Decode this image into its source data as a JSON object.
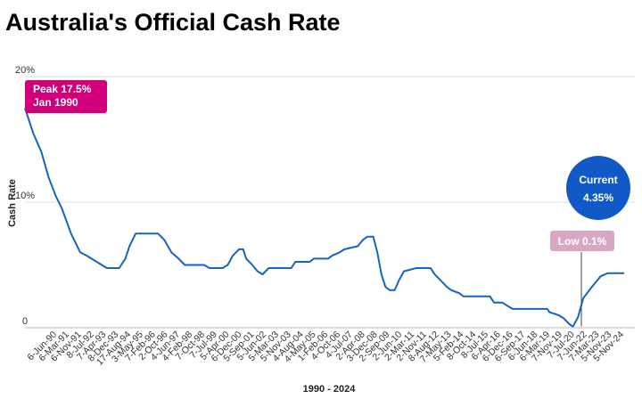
{
  "chart_data": {
    "type": "line",
    "title": "Australia's Official Cash Rate",
    "xlabel": "1990 - 2024",
    "ylabel": "Cash Rate",
    "ylim": [
      0,
      20
    ],
    "yticks": [
      {
        "value": 0,
        "label": "0"
      },
      {
        "value": 10,
        "label": "10%"
      },
      {
        "value": 20,
        "label": "20%"
      }
    ],
    "grid": true,
    "legend": "none",
    "line_color": "#1565c0",
    "xtick_labels": [
      "6-Jun-90",
      "6-Mar-91",
      "6-Nov-91",
      "8-Jul-92",
      "7-Apr-93",
      "8-Dec-93",
      "17-Aug-94",
      "3-May-95",
      "7-Feb-96",
      "2-Oct-96",
      "4-Jun-97",
      "4-Feb-98",
      "7-Oct-98",
      "7-Jul-99",
      "5-Apr-00",
      "6-Dec-00",
      "5-Sep-01",
      "5-Jun-02",
      "5-Mar-03",
      "5-Nov-03",
      "4-Aug-04",
      "4-May-05",
      "1-Feb-06",
      "4-Oct-06",
      "4-Jul-07",
      "2-Apr-08",
      "3-Dec-08",
      "2-Sep-09",
      "2-Jun-10",
      "2-Mar-11",
      "2-Nov-11",
      "8-Aug-12",
      "7-May-13",
      "5-Feb-14",
      "8-Oct-14",
      "8-Jul-15",
      "6-Apr-16",
      "6-Dec-16",
      "6-Sep-17",
      "6-Jun-18",
      "6-Mar-19",
      "7-Nov-19",
      "7-Jul-20",
      "7-Jun-22",
      "7-Mar-23",
      "5-Nov-23",
      "5-Nov-24"
    ],
    "series": [
      {
        "points": [
          [
            0,
            17.5
          ],
          [
            0.8,
            15.5
          ],
          [
            1.6,
            14
          ],
          [
            2.3,
            12
          ],
          [
            3,
            10.5
          ],
          [
            3.6,
            9.5
          ],
          [
            4.5,
            7.5
          ],
          [
            5.4,
            6
          ],
          [
            6,
            5.75
          ],
          [
            7,
            5.25
          ],
          [
            8,
            4.75
          ],
          [
            9.2,
            4.75
          ],
          [
            9.8,
            5.5
          ],
          [
            10.2,
            6.5
          ],
          [
            10.8,
            7.5
          ],
          [
            13,
            7.5
          ],
          [
            13.6,
            7
          ],
          [
            14.3,
            6
          ],
          [
            15,
            5.5
          ],
          [
            15.6,
            5
          ],
          [
            17.5,
            5
          ],
          [
            18,
            4.75
          ],
          [
            19.3,
            4.75
          ],
          [
            19.8,
            5
          ],
          [
            20.3,
            5.75
          ],
          [
            20.9,
            6.25
          ],
          [
            21.3,
            6.25
          ],
          [
            21.6,
            5.5
          ],
          [
            22.2,
            5
          ],
          [
            22.7,
            4.5
          ],
          [
            23.2,
            4.25
          ],
          [
            23.8,
            4.75
          ],
          [
            24.7,
            4.75
          ],
          [
            26,
            4.75
          ],
          [
            26.4,
            5.25
          ],
          [
            27.8,
            5.25
          ],
          [
            28.2,
            5.5
          ],
          [
            29.6,
            5.5
          ],
          [
            30,
            5.75
          ],
          [
            30.7,
            6
          ],
          [
            31.2,
            6.25
          ],
          [
            32.5,
            6.5
          ],
          [
            33,
            7
          ],
          [
            33.4,
            7.25
          ],
          [
            34,
            7.25
          ],
          [
            34.4,
            6
          ],
          [
            34.8,
            4.25
          ],
          [
            35.2,
            3.25
          ],
          [
            35.6,
            3
          ],
          [
            36.1,
            3
          ],
          [
            36.5,
            3.75
          ],
          [
            37,
            4.5
          ],
          [
            38.2,
            4.75
          ],
          [
            39.6,
            4.75
          ],
          [
            40,
            4.25
          ],
          [
            40.6,
            3.75
          ],
          [
            41.2,
            3.25
          ],
          [
            41.6,
            3
          ],
          [
            42.4,
            2.75
          ],
          [
            42.8,
            2.5
          ],
          [
            45.4,
            2.5
          ],
          [
            45.8,
            2
          ],
          [
            46.6,
            2
          ],
          [
            47.6,
            1.5
          ],
          [
            49.8,
            1.5
          ],
          [
            51,
            1.5
          ],
          [
            51.2,
            1.25
          ],
          [
            52.1,
            1
          ],
          [
            52.6,
            0.75
          ],
          [
            53.2,
            0.25
          ],
          [
            53.5,
            0.1
          ],
          [
            54,
            0.85
          ],
          [
            54.5,
            2.35
          ],
          [
            55.2,
            3.1
          ],
          [
            55.7,
            3.6
          ],
          [
            56.2,
            4.1
          ],
          [
            56.9,
            4.35
          ],
          [
            58.5,
            4.35
          ]
        ]
      }
    ],
    "annotations": {
      "peak": {
        "line1": "Peak 17.5%",
        "line2": "Jan 1990",
        "color": "#d1007a",
        "x": 0,
        "y": 17.5
      },
      "current": {
        "line1": "Current",
        "line2": "4.35%",
        "color": "#1059c7",
        "x": 58.5,
        "y": 4.35
      },
      "low": {
        "label": "Low 0.1%",
        "color": "#d9a7c3",
        "x": 53.5,
        "y": 0.1
      }
    }
  }
}
